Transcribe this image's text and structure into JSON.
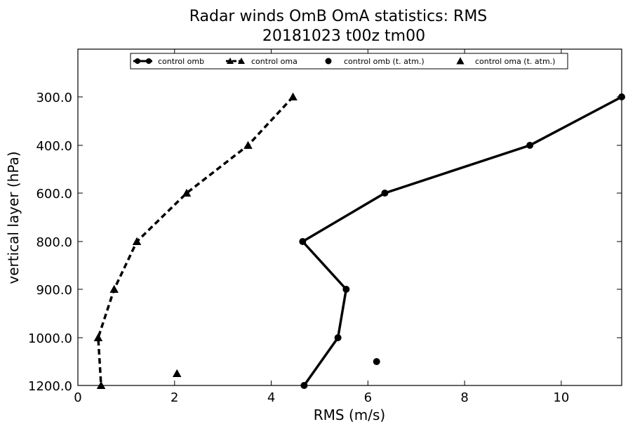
{
  "chart_data": {
    "type": "line",
    "title": "Radar winds OmB OmA statistics: RMS",
    "subtitle": "20181023 t00z tm00",
    "xlabel": "RMS (m/s)",
    "ylabel": "vertical layer (hPa)",
    "xlim": [
      0,
      11.25
    ],
    "x_ticks": [
      "0",
      "2",
      "4",
      "6",
      "8",
      "10"
    ],
    "y_categories": [
      "300.0",
      "400.0",
      "600.0",
      "800.0",
      "900.0",
      "1000.0",
      "1200.0"
    ],
    "grid": false,
    "legend_position": "top-center",
    "series": [
      {
        "name": "control omb",
        "style": "solid",
        "marker": "circle",
        "color": "#000000",
        "points": [
          {
            "x": 11.25,
            "y": "300.0"
          },
          {
            "x": 9.35,
            "y": "400.0"
          },
          {
            "x": 6.35,
            "y": "600.0"
          },
          {
            "x": 4.65,
            "y": "800.0"
          },
          {
            "x": 5.55,
            "y": "900.0"
          },
          {
            "x": 5.38,
            "y": "1000.0"
          },
          {
            "x": 4.68,
            "y": "1200.0"
          }
        ]
      },
      {
        "name": "control oma",
        "style": "dashed",
        "marker": "triangle",
        "color": "#000000",
        "points": [
          {
            "x": 4.45,
            "y": "300.0"
          },
          {
            "x": 3.52,
            "y": "400.0"
          },
          {
            "x": 2.25,
            "y": "600.0"
          },
          {
            "x": 1.22,
            "y": "800.0"
          },
          {
            "x": 0.75,
            "y": "900.0"
          },
          {
            "x": 0.42,
            "y": "1000.0"
          },
          {
            "x": 0.48,
            "y": "1200.0"
          }
        ]
      },
      {
        "name": "control omb (t. atm.)",
        "style": "none",
        "marker": "circle",
        "color": "#000000",
        "points": [
          {
            "x": 6.18,
            "y_between": [
              "1000.0",
              "1200.0"
            ],
            "fraction": 0.5
          }
        ]
      },
      {
        "name": "control oma (t. atm.)",
        "style": "none",
        "marker": "triangle",
        "color": "#000000",
        "points": [
          {
            "x": 2.05,
            "y_between": [
              "1000.0",
              "1200.0"
            ],
            "fraction": 0.75
          }
        ]
      }
    ]
  }
}
